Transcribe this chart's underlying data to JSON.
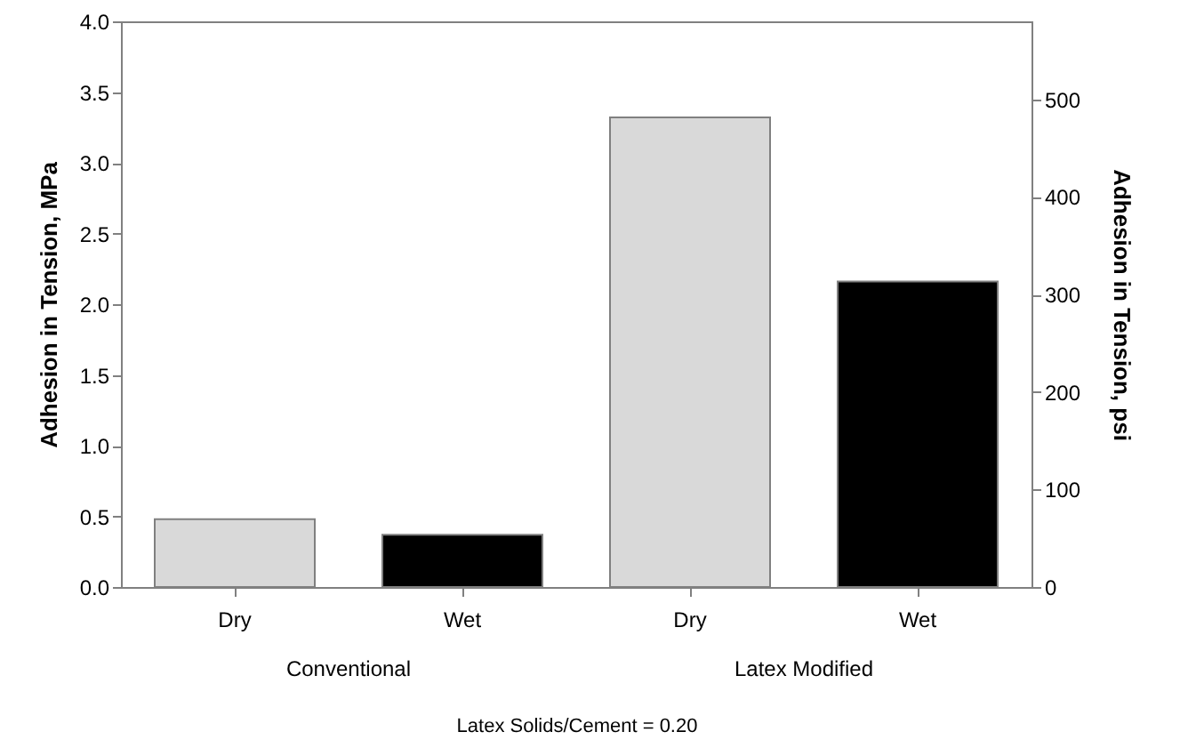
{
  "chart_data": {
    "type": "bar",
    "categories": [
      "Dry",
      "Wet",
      "Dry",
      "Wet"
    ],
    "values": [
      0.48,
      0.37,
      3.32,
      2.16
    ],
    "colors": [
      "#d9d9d9",
      "#000000",
      "#d9d9d9",
      "#000000"
    ],
    "ylabel": "Adhesion in Tension, MPa",
    "y2label": "Adhesion in Tension, psi",
    "xlabel": "Latex Solids/Cement = 0.20",
    "annotations": [
      "Conventional",
      "Latex Modified"
    ],
    "ylim": [
      0,
      4
    ],
    "yticks": [
      {
        "value": 0,
        "label": "0.0"
      },
      {
        "value": 0.5,
        "label": "0.5"
      },
      {
        "value": 1,
        "label": "1.0"
      },
      {
        "value": 1.5,
        "label": "1.5"
      },
      {
        "value": 2,
        "label": "2.0"
      },
      {
        "value": 2.5,
        "label": "2.5"
      },
      {
        "value": 3,
        "label": "3.0"
      },
      {
        "value": 3.5,
        "label": "3.5"
      },
      {
        "value": 4,
        "label": "4.0"
      }
    ],
    "y2lim": [
      0,
      580
    ],
    "y2ticks": [
      0,
      100,
      200,
      300,
      400,
      500
    ],
    "grid": false
  }
}
